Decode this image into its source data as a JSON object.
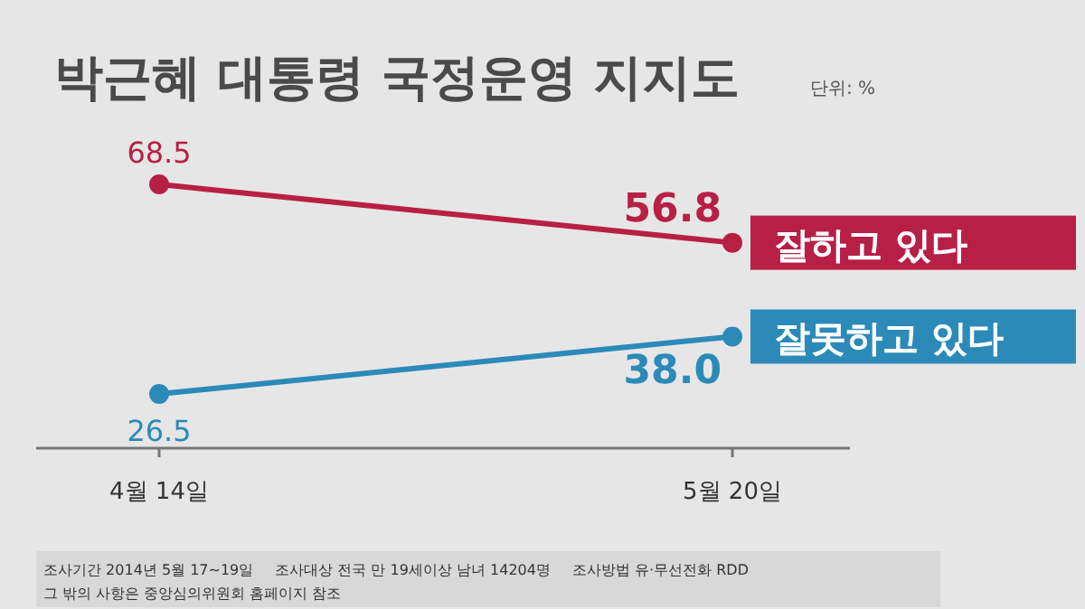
{
  "chart_data": {
    "type": "line",
    "title": "박근혜 대통령 국정운영 지지도",
    "subtitle": "단위: %",
    "categories": [
      "4월 14일",
      "5월 20일"
    ],
    "series": [
      {
        "name": "잘하고 있다",
        "color": "#b81f45",
        "values": [
          68.5,
          56.8
        ],
        "value_labels": [
          "68.5",
          "56.8"
        ]
      },
      {
        "name": "잘못하고 있다",
        "color": "#2b8ab8",
        "values": [
          26.5,
          38.0
        ],
        "value_labels": [
          "26.5",
          "38.0"
        ]
      }
    ],
    "marker": "circle",
    "legend": "right",
    "annotations": [
      "조사기간 2014년 5월 17~19일",
      "조사대상 전국 만 19세이상 남녀 14204명",
      "조사방법 유·무선전화 RDD",
      "그 밖의 사항은 중앙심의위원회 홈페이지 참조"
    ]
  }
}
